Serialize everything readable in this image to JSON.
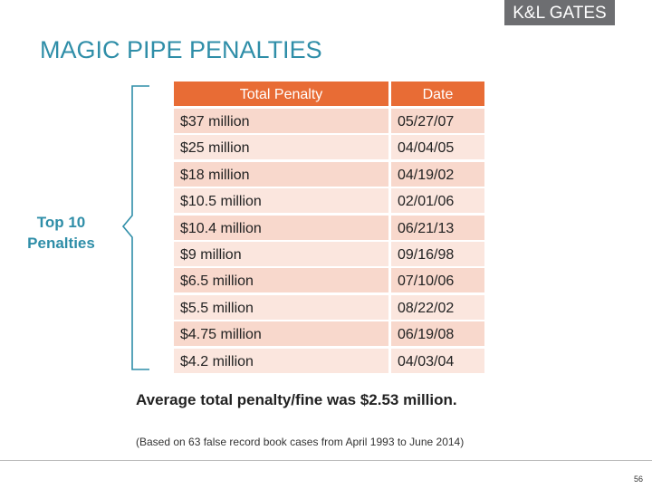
{
  "logo": "K&L GATES",
  "title": "MAGIC PIPE PENALTIES",
  "side_label": [
    "Top 10",
    "Penalties"
  ],
  "table": {
    "header": [
      "Total Penalty",
      "Date"
    ],
    "rows": [
      [
        "$37 million",
        "05/27/07"
      ],
      [
        "$25 million",
        "04/04/05"
      ],
      [
        "$18 million",
        "04/19/02"
      ],
      [
        "$10.5 million",
        "02/01/06"
      ],
      [
        "$10.4 million",
        "06/21/13"
      ],
      [
        "$9 million",
        "09/16/98"
      ],
      [
        "$6.5 million",
        "07/10/06"
      ],
      [
        "$5.5 million",
        "08/22/02"
      ],
      [
        "$4.75 million",
        "06/19/08"
      ],
      [
        "$4.2 million",
        "04/03/04"
      ]
    ]
  },
  "summary": "Average total penalty/fine was $2.53 million.",
  "footnote": "(Based on 63 false record book cases from April 1993 to June 2014)",
  "page_number": "56"
}
